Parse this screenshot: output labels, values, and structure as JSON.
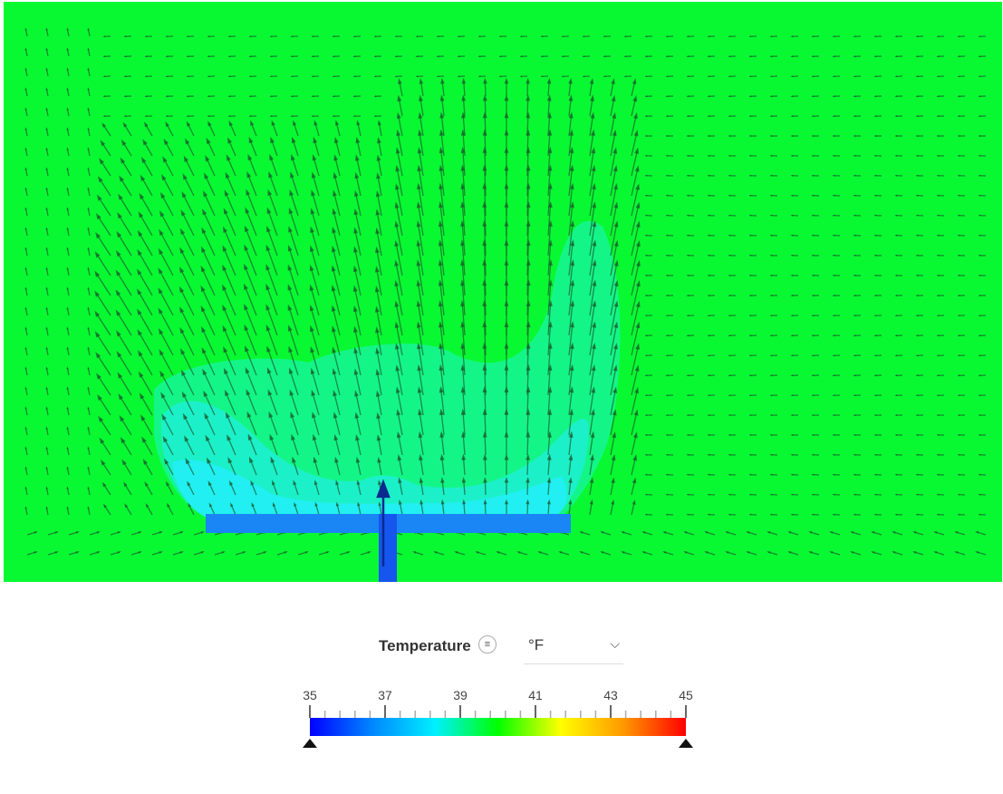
{
  "viewport": {
    "background_color": "#08f932",
    "geometry_color": "#1a86f5",
    "inlet_color": "#1656ee",
    "cool_region_colors": [
      "#14f58c",
      "#1ef0d0",
      "#22eef5"
    ],
    "arrow_color": "#1c5a2c",
    "overlay": "velocity-vectors"
  },
  "legend": {
    "title": "Temperature",
    "menu_icon": "list-icon",
    "unit": "°F",
    "unit_dropdown_icon": "chevron-down-icon",
    "min": 35,
    "max": 45,
    "tick_labels": [
      "35",
      "37",
      "39",
      "41",
      "43",
      "45"
    ],
    "colormap": [
      "#0000ff",
      "#0088ff",
      "#00f0ff",
      "#00ff00",
      "#ffff00",
      "#ff9900",
      "#ff0000"
    ],
    "min_handle_value": 35,
    "max_handle_value": 45
  }
}
